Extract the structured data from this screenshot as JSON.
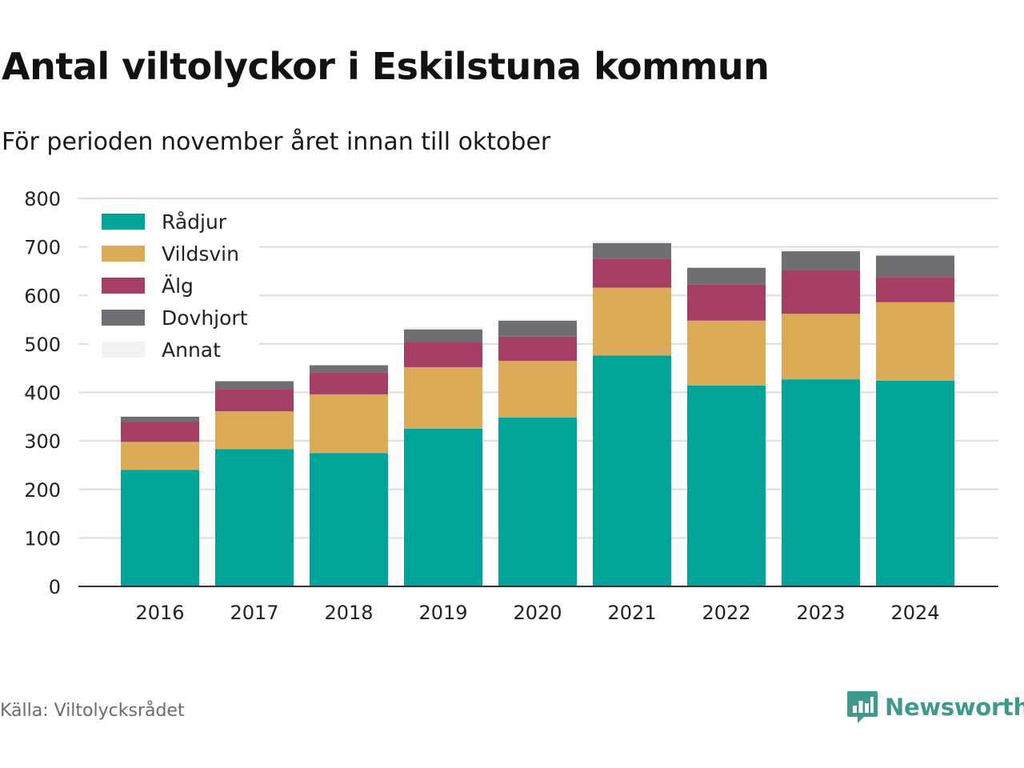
{
  "header": {
    "title": "Antal viltolyckor i Eskilstuna kommun",
    "subtitle": "För perioden november året innan till oktober"
  },
  "footer": {
    "source": "Källa: Viltolycksrådet",
    "brand": "Newsworthy",
    "brand_icon": "bar-chart-logo-icon",
    "brand_color": "#3f9a8e"
  },
  "chart_data": {
    "type": "bar",
    "stacked": true,
    "categories": [
      "2016",
      "2017",
      "2018",
      "2019",
      "2020",
      "2021",
      "2022",
      "2023",
      "2024"
    ],
    "ylim": [
      0,
      800
    ],
    "yticks": [
      0,
      100,
      200,
      300,
      400,
      500,
      600,
      700,
      800
    ],
    "grid": true,
    "legend_position": "top-left",
    "xlabel": "",
    "ylabel": "",
    "series": [
      {
        "name": "Rådjur",
        "color": "#00a499",
        "values": [
          240,
          283,
          275,
          325,
          348,
          476,
          414,
          427,
          424
        ]
      },
      {
        "name": "Vildsvin",
        "color": "#dcab58",
        "values": [
          58,
          78,
          121,
          127,
          117,
          140,
          134,
          135,
          162
        ]
      },
      {
        "name": "Älg",
        "color": "#a63f66",
        "values": [
          41,
          46,
          45,
          52,
          50,
          60,
          74,
          91,
          52
        ]
      },
      {
        "name": "Dovhjort",
        "color": "#6e6e73",
        "values": [
          11,
          16,
          15,
          26,
          33,
          32,
          35,
          38,
          44
        ]
      },
      {
        "name": "Annat",
        "color": "#f2f2f2",
        "values": [
          1,
          1,
          1,
          5,
          3,
          5,
          2,
          5,
          4
        ]
      }
    ]
  }
}
